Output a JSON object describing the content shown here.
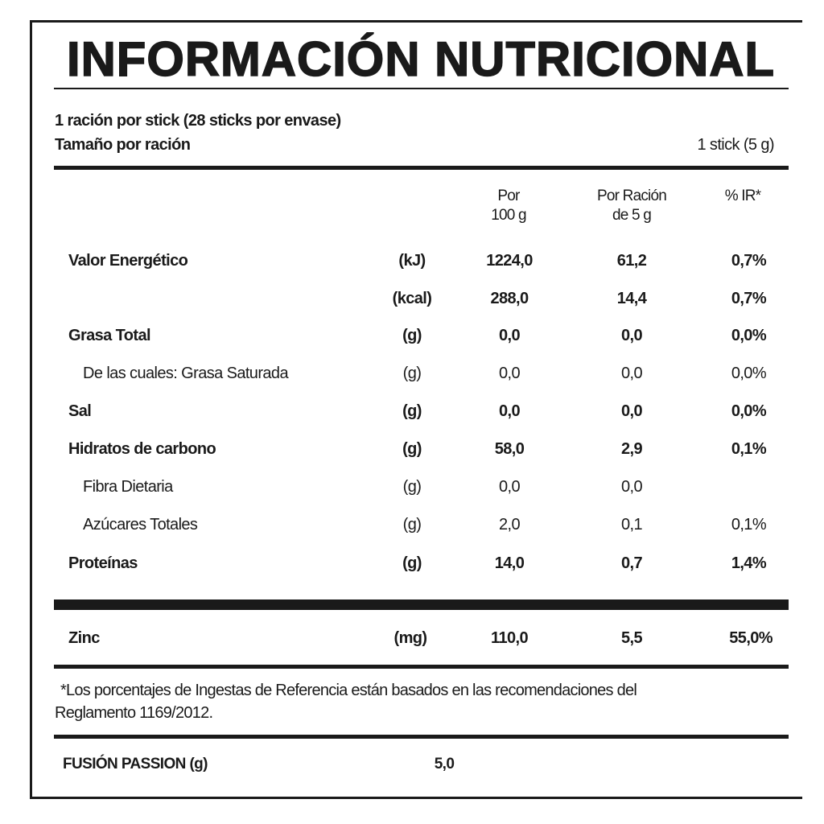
{
  "title": "INFORMACIÓN NUTRICIONAL",
  "serving": {
    "servings_line": "1 ración por stick (28 sticks por envase)",
    "size_label": "Tamaño por ración",
    "size_value": "1 stick (5 g)"
  },
  "columns": {
    "per100_line1": "Por",
    "per100_line2": "100 g",
    "perserving_line1": "Por Ración",
    "perserving_line2": "de 5 g",
    "ir": "% IR*"
  },
  "rows": [
    {
      "label": "Valor Energético",
      "unit": "(kJ)",
      "per100": "1224,0",
      "serving": "61,2",
      "ir": "0,7%",
      "bold": true,
      "sub": false
    },
    {
      "label": "",
      "unit": "(kcal)",
      "per100": "288,0",
      "serving": "14,4",
      "ir": "0,7%",
      "bold": true,
      "sub": false
    },
    {
      "label": "Grasa Total",
      "unit": "(g)",
      "per100": "0,0",
      "serving": "0,0",
      "ir": "0,0%",
      "bold": true,
      "sub": false
    },
    {
      "label": "De las cuales: Grasa Saturada",
      "unit": "(g)",
      "per100": "0,0",
      "serving": "0,0",
      "ir": "0,0%",
      "bold": false,
      "sub": true
    },
    {
      "label": "Sal",
      "unit": "(g)",
      "per100": "0,0",
      "serving": "0,0",
      "ir": "0,0%",
      "bold": true,
      "sub": false
    },
    {
      "label": "Hidratos de carbono",
      "unit": "(g)",
      "per100": "58,0",
      "serving": "2,9",
      "ir": "0,1%",
      "bold": true,
      "sub": false
    },
    {
      "label": "Fibra Dietaria",
      "unit": "(g)",
      "per100": "0,0",
      "serving": "0,0",
      "ir": "",
      "bold": false,
      "sub": true
    },
    {
      "label": "Azúcares Totales",
      "unit": "(g)",
      "per100": "2,0",
      "serving": "0,1",
      "ir": "0,1%",
      "bold": false,
      "sub": true
    },
    {
      "label": "Proteínas",
      "unit": "(g)",
      "per100": "14,0",
      "serving": "0,7",
      "ir": "1,4%",
      "bold": true,
      "sub": false
    }
  ],
  "zinc": {
    "label": "Zinc",
    "unit": "(mg)",
    "per100": "110,0",
    "serving": "5,5",
    "ir": "55,0%"
  },
  "footnote": {
    "line1": "*Los porcentajes de Ingestas de Referencia están basados en las recomendaciones del",
    "line2": "Reglamento 1169/2012."
  },
  "ingredient": {
    "label": "FUSIÓN PASSION (g)",
    "value": "5,0"
  }
}
